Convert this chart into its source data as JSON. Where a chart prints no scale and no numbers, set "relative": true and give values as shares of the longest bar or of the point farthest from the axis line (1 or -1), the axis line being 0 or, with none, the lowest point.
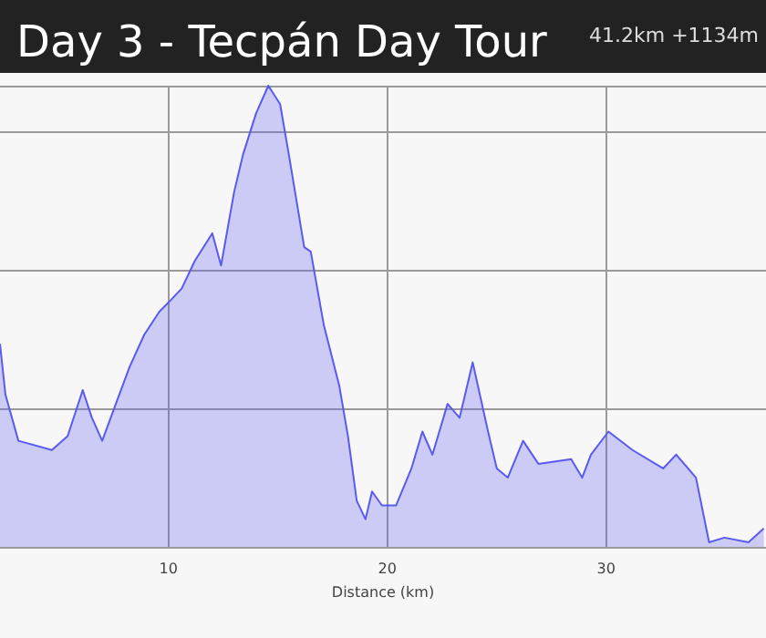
{
  "chart_data": {
    "type": "area",
    "title": "Day 3 - Tecpán Day Tour",
    "annotations": [
      "41.2km +1134m"
    ],
    "xlabel": "Distance (km)",
    "relative": true,
    "color": "#5a5af0",
    "grid": true,
    "xlim": [
      2.3,
      37.3
    ],
    "xticks": [
      10,
      20,
      30
    ],
    "x": [
      2.3,
      2.55,
      3.14,
      4.67,
      5.39,
      6.08,
      6.5,
      6.97,
      7.67,
      8.22,
      8.89,
      9.58,
      10.0,
      10.6,
      11.2,
      12.0,
      12.4,
      13.0,
      13.4,
      14.0,
      14.56,
      15.1,
      15.5,
      16.2,
      16.5,
      17.1,
      17.8,
      18.2,
      18.6,
      19.0,
      19.3,
      19.75,
      20.4,
      21.1,
      21.6,
      22.06,
      22.75,
      23.3,
      23.9,
      24.6,
      25.0,
      25.5,
      26.2,
      26.9,
      28.4,
      28.9,
      29.3,
      30.1,
      31.2,
      32.6,
      33.2,
      34.1,
      34.7,
      35.4,
      36.5,
      37.2
    ],
    "values": [
      0.44,
      0.33,
      0.23,
      0.21,
      0.24,
      0.34,
      0.28,
      0.23,
      0.32,
      0.39,
      0.46,
      0.51,
      0.53,
      0.56,
      0.62,
      0.68,
      0.61,
      0.77,
      0.85,
      0.94,
      1.0,
      0.96,
      0.85,
      0.65,
      0.64,
      0.48,
      0.35,
      0.24,
      0.1,
      0.06,
      0.12,
      0.09,
      0.09,
      0.17,
      0.25,
      0.2,
      0.31,
      0.28,
      0.4,
      0.25,
      0.17,
      0.15,
      0.23,
      0.18,
      0.19,
      0.15,
      0.2,
      0.25,
      0.21,
      0.17,
      0.2,
      0.15,
      0.01,
      0.02,
      0.01,
      0.04
    ]
  }
}
